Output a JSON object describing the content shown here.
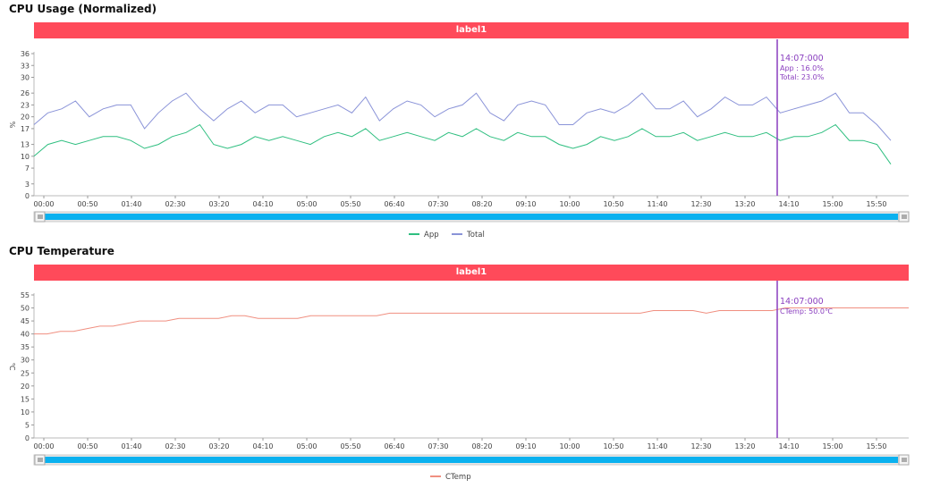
{
  "colors": {
    "banner": "#ff4a5a",
    "app": "#2fbf80",
    "total": "#8a93d8",
    "ctemp": "#f08f80",
    "cursor": "#8a3fbf",
    "scroll": "#0ab1ef"
  },
  "icons": {
    "scroll_left": "grip-lines-icon",
    "scroll_right": "grip-lines-icon"
  },
  "chart_data": [
    {
      "type": "line",
      "title": "CPU Usage (Normalized)",
      "banner_label": "label1",
      "ylabel": "%",
      "ylim": [
        0,
        36
      ],
      "yticks": [
        0,
        3,
        7,
        10,
        13,
        17,
        20,
        23,
        26,
        30,
        33,
        36
      ],
      "xticks": [
        "00:00",
        "00:50",
        "01:40",
        "02:30",
        "03:20",
        "04:10",
        "05:00",
        "05:50",
        "06:40",
        "07:30",
        "08:20",
        "09:10",
        "10:00",
        "10:50",
        "11:40",
        "12:30",
        "13:20",
        "14:10",
        "15:00",
        "15:50"
      ],
      "series": [
        {
          "name": "App",
          "color_key": "app",
          "values": [
            10,
            13,
            14,
            13,
            14,
            15,
            15,
            14,
            12,
            13,
            15,
            16,
            18,
            13,
            12,
            13,
            15,
            14,
            15,
            14,
            13,
            15,
            16,
            15,
            17,
            14,
            15,
            16,
            15,
            14,
            16,
            15,
            17,
            15,
            14,
            16,
            15,
            15,
            13,
            12,
            13,
            15,
            14,
            15,
            17,
            15,
            15,
            16,
            14,
            15,
            16,
            15,
            15,
            16,
            14,
            15,
            15,
            16,
            18,
            14,
            14,
            13,
            8
          ]
        },
        {
          "name": "Total",
          "color_key": "total",
          "values": [
            18,
            21,
            22,
            24,
            20,
            22,
            23,
            23,
            17,
            21,
            24,
            26,
            22,
            19,
            22,
            24,
            21,
            23,
            23,
            20,
            21,
            22,
            23,
            21,
            25,
            19,
            22,
            24,
            23,
            20,
            22,
            23,
            26,
            21,
            19,
            23,
            24,
            23,
            18,
            18,
            21,
            22,
            21,
            23,
            26,
            22,
            22,
            24,
            20,
            22,
            25,
            23,
            23,
            25,
            21,
            22,
            23,
            24,
            26,
            21,
            21,
            18,
            14
          ]
        }
      ],
      "cursor": {
        "time": "14:07:000",
        "lines": [
          "App  : 16.0%",
          "Total: 23.0%"
        ]
      }
    },
    {
      "type": "line",
      "title": "CPU Temperature",
      "banner_label": "label1",
      "ylabel": "℃",
      "ylim": [
        0,
        55
      ],
      "yticks": [
        0,
        5,
        10,
        15,
        20,
        25,
        30,
        35,
        40,
        45,
        50,
        55
      ],
      "xticks": [
        "00:00",
        "00:50",
        "01:40",
        "02:30",
        "03:20",
        "04:10",
        "05:00",
        "05:50",
        "06:40",
        "07:30",
        "08:20",
        "09:10",
        "10:00",
        "10:50",
        "11:40",
        "12:30",
        "13:20",
        "14:10",
        "15:00",
        "15:50"
      ],
      "series": [
        {
          "name": "CTemp",
          "color_key": "ctemp",
          "values": [
            40,
            40,
            41,
            41,
            42,
            43,
            43,
            44,
            45,
            45,
            45,
            46,
            46,
            46,
            46,
            47,
            47,
            46,
            46,
            46,
            46,
            47,
            47,
            47,
            47,
            47,
            47,
            48,
            48,
            48,
            48,
            48,
            48,
            48,
            48,
            48,
            48,
            48,
            48,
            48,
            48,
            48,
            48,
            48,
            48,
            48,
            48,
            49,
            49,
            49,
            49,
            48,
            49,
            49,
            49,
            49,
            49,
            50,
            50,
            50,
            50,
            50,
            50,
            50,
            50,
            50
          ]
        }
      ],
      "cursor": {
        "time": "14:07:000",
        "lines": [
          "CTemp: 50.0℃"
        ]
      }
    }
  ]
}
